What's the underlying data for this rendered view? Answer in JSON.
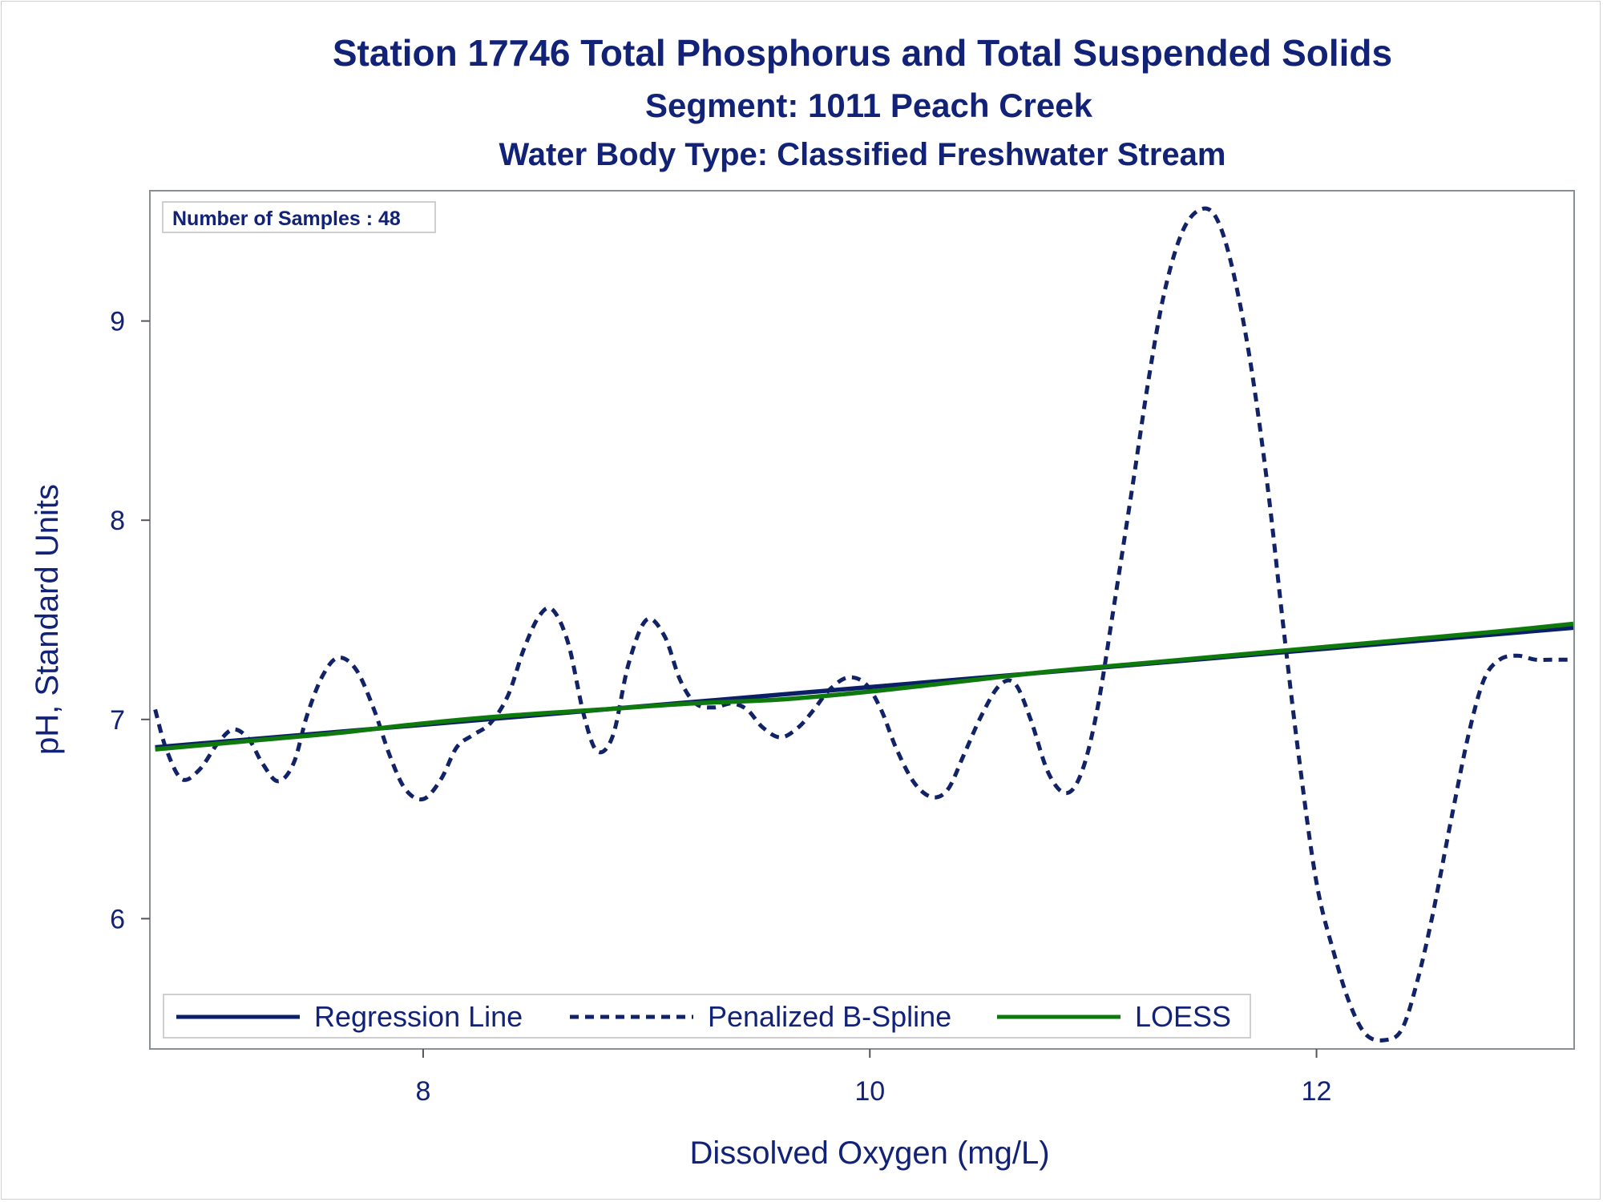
{
  "chart_data": {
    "type": "line",
    "title": "Station 17746  Total Phosphorus and Total Suspended Solids",
    "subtitle": "Segment: 1011  Peach Creek",
    "subtitle2": "Water Body Type: Classified Freshwater Stream",
    "xlabel": "Dissolved Oxygen (mg/L)",
    "ylabel": "pH, Standard Units",
    "xlim": [
      6.78,
      13.15
    ],
    "ylim": [
      5.35,
      9.65
    ],
    "xticks": [
      8,
      10,
      12
    ],
    "yticks": [
      6,
      7,
      8,
      9
    ],
    "inset": "Number of Samples : 48",
    "legend_position": "bottom-left",
    "grid": false,
    "series": [
      {
        "name": "Regression Line",
        "style": "solid",
        "color": "#0b1f66",
        "x": [
          6.8,
          13.15
        ],
        "y": [
          6.86,
          7.46
        ]
      },
      {
        "name": "Penalized B-Spline",
        "style": "dashed",
        "color": "#112266",
        "x": [
          6.8,
          6.85,
          6.92,
          7.0,
          7.08,
          7.15,
          7.22,
          7.28,
          7.35,
          7.42,
          7.48,
          7.55,
          7.62,
          7.7,
          7.78,
          7.85,
          7.92,
          8.0,
          8.08,
          8.15,
          8.22,
          8.3,
          8.38,
          8.45,
          8.52,
          8.58,
          8.65,
          8.72,
          8.78,
          8.85,
          8.92,
          9.0,
          9.08,
          9.15,
          9.22,
          9.3,
          9.38,
          9.45,
          9.52,
          9.6,
          9.68,
          9.75,
          9.82,
          9.9,
          9.98,
          10.05,
          10.12,
          10.2,
          10.28,
          10.35,
          10.42,
          10.5,
          10.58,
          10.65,
          10.72,
          10.8,
          10.88,
          10.95,
          11.02,
          11.1,
          11.18,
          11.25,
          11.32,
          11.4,
          11.48,
          11.55,
          11.62,
          11.7,
          11.78,
          11.85,
          11.92,
          12.0,
          12.08,
          12.15,
          12.22,
          12.3,
          12.38,
          12.45,
          12.52,
          12.6,
          12.68,
          12.75,
          12.82,
          12.9,
          12.98,
          13.05,
          13.12,
          13.15
        ],
        "y": [
          7.05,
          6.85,
          6.7,
          6.75,
          6.88,
          6.95,
          6.9,
          6.78,
          6.69,
          6.78,
          7.02,
          7.22,
          7.31,
          7.25,
          7.05,
          6.82,
          6.65,
          6.6,
          6.7,
          6.86,
          6.92,
          6.98,
          7.12,
          7.35,
          7.52,
          7.55,
          7.38,
          7.02,
          6.84,
          6.92,
          7.28,
          7.5,
          7.42,
          7.2,
          7.08,
          7.06,
          7.08,
          7.05,
          6.96,
          6.91,
          6.96,
          7.05,
          7.15,
          7.21,
          7.18,
          7.05,
          6.85,
          6.68,
          6.61,
          6.65,
          6.82,
          7.02,
          7.17,
          7.18,
          7.0,
          6.73,
          6.63,
          6.74,
          7.06,
          7.62,
          8.2,
          8.72,
          9.15,
          9.45,
          9.56,
          9.52,
          9.28,
          8.82,
          8.18,
          7.48,
          6.82,
          6.18,
          5.82,
          5.57,
          5.42,
          5.39,
          5.44,
          5.68,
          6.02,
          6.48,
          6.92,
          7.2,
          7.3,
          7.32,
          7.3,
          7.3,
          7.3,
          7.3
        ]
      },
      {
        "name": "LOESS",
        "style": "solid",
        "color": "#0e7a0e",
        "x": [
          6.8,
          7.2,
          7.6,
          8.0,
          8.4,
          8.8,
          9.2,
          9.6,
          10.0,
          10.4,
          10.8,
          11.2,
          11.6,
          12.0,
          12.4,
          12.8,
          13.15
        ],
        "y": [
          6.85,
          6.89,
          6.93,
          6.98,
          7.02,
          7.05,
          7.08,
          7.1,
          7.14,
          7.19,
          7.24,
          7.28,
          7.32,
          7.36,
          7.4,
          7.44,
          7.48
        ]
      }
    ]
  }
}
